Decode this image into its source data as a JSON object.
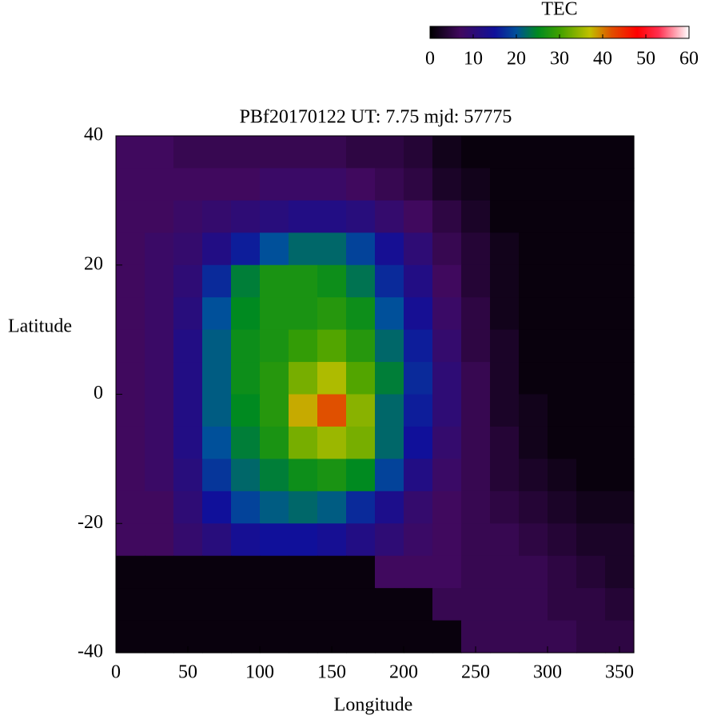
{
  "chart_data": {
    "type": "heatmap",
    "title": "PBf20170122  UT: 7.75  mjd: 57775",
    "xlabel": "Longitude",
    "ylabel": "Latitude",
    "colorbar_label": "TEC",
    "x": [
      10,
      30,
      50,
      70,
      90,
      110,
      130,
      150,
      170,
      190,
      210,
      230,
      250,
      270,
      290,
      310,
      330,
      350
    ],
    "y": [
      37.5,
      32.5,
      27.5,
      22.5,
      17.5,
      12.5,
      7.5,
      2.5,
      -2.5,
      -7.5,
      -12.5,
      -17.5,
      -22.5,
      -27.5,
      -32.5,
      -37.5
    ],
    "values": [
      [
        7,
        7,
        6,
        6,
        6,
        6,
        6,
        6,
        5,
        5,
        4,
        2,
        1,
        1,
        1,
        1,
        1,
        1
      ],
      [
        7,
        7,
        7,
        7,
        7,
        8,
        8,
        8,
        7,
        6,
        5,
        3,
        2,
        1,
        1,
        1,
        1,
        1
      ],
      [
        7,
        7,
        8,
        9,
        10,
        11,
        12,
        12,
        11,
        9,
        7,
        5,
        3,
        1,
        1,
        1,
        1,
        1
      ],
      [
        7,
        8,
        9,
        12,
        16,
        20,
        22,
        22,
        19,
        14,
        10,
        6,
        4,
        2,
        1,
        1,
        1,
        1
      ],
      [
        7,
        8,
        10,
        17,
        24,
        27,
        27,
        26,
        23,
        17,
        12,
        7,
        4,
        2,
        1,
        1,
        1,
        1
      ],
      [
        7,
        8,
        11,
        20,
        25,
        27,
        27,
        28,
        26,
        20,
        14,
        8,
        5,
        2,
        1,
        1,
        1,
        1
      ],
      [
        7,
        8,
        12,
        21,
        26,
        27,
        29,
        31,
        28,
        22,
        16,
        9,
        5,
        3,
        1,
        1,
        1,
        1
      ],
      [
        7,
        8,
        12,
        21,
        26,
        28,
        33,
        36,
        31,
        24,
        17,
        10,
        6,
        3,
        1,
        1,
        1,
        1
      ],
      [
        7,
        8,
        12,
        21,
        25,
        28,
        38,
        42,
        34,
        22,
        16,
        10,
        6,
        3,
        2,
        1,
        1,
        1
      ],
      [
        7,
        8,
        12,
        20,
        24,
        27,
        33,
        35,
        33,
        22,
        15,
        9,
        6,
        4,
        2,
        1,
        1,
        1
      ],
      [
        7,
        8,
        11,
        18,
        22,
        24,
        26,
        27,
        25,
        19,
        12,
        8,
        6,
        4,
        3,
        2,
        1,
        1
      ],
      [
        7,
        7,
        10,
        15,
        19,
        21,
        22,
        21,
        17,
        13,
        9,
        7,
        6,
        5,
        4,
        3,
        2,
        2
      ],
      [
        7,
        7,
        9,
        11,
        14,
        15,
        15,
        14,
        12,
        10,
        8,
        7,
        6,
        6,
        5,
        4,
        3,
        3
      ],
      [
        1,
        1,
        1,
        1,
        1,
        1,
        1,
        1,
        1,
        7,
        7,
        7,
        6,
        6,
        6,
        5,
        4,
        3
      ],
      [
        1,
        1,
        1,
        1,
        1,
        1,
        1,
        1,
        1,
        1,
        1,
        6,
        6,
        6,
        6,
        5,
        5,
        4
      ],
      [
        1,
        1,
        1,
        1,
        1,
        1,
        1,
        1,
        1,
        1,
        1,
        1,
        6,
        6,
        6,
        6,
        5,
        5
      ]
    ],
    "xlim": [
      0,
      360
    ],
    "xticks": [
      0,
      50,
      100,
      150,
      200,
      250,
      300,
      350
    ],
    "ylim": [
      -40,
      40
    ],
    "yticks": [
      -40,
      -20,
      0,
      20,
      40
    ],
    "zlim": [
      0,
      60
    ],
    "zticks": [
      0,
      10,
      20,
      30,
      40,
      50,
      60
    ],
    "colorscale": [
      [
        0,
        "#000000"
      ],
      [
        7,
        "#40095e"
      ],
      [
        15,
        "#10109a"
      ],
      [
        20,
        "#00509a"
      ],
      [
        25,
        "#008a20"
      ],
      [
        30,
        "#40a000"
      ],
      [
        37,
        "#c0c000"
      ],
      [
        42,
        "#e05000"
      ],
      [
        48,
        "#ff0000"
      ],
      [
        53,
        "#ff3050"
      ],
      [
        60,
        "#ffffff"
      ]
    ]
  }
}
